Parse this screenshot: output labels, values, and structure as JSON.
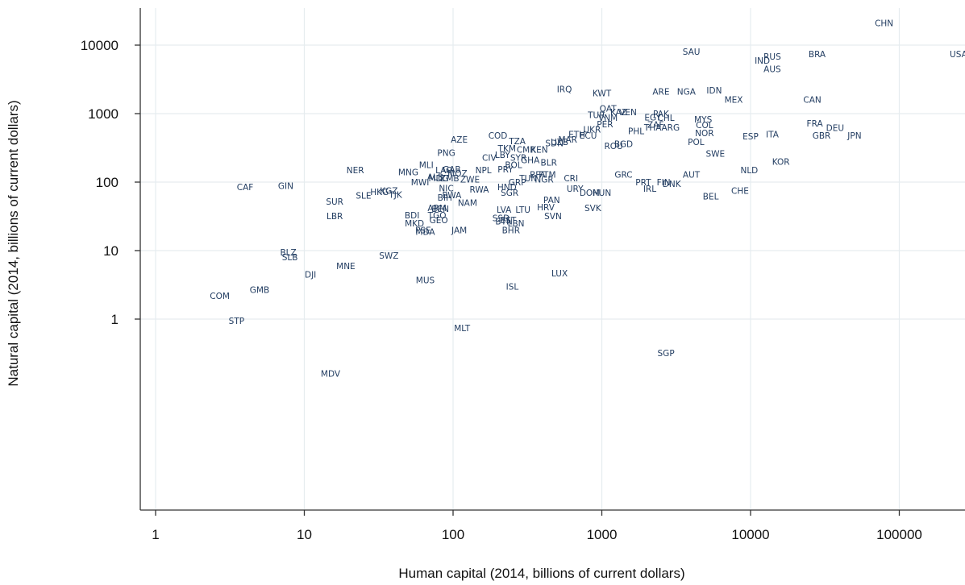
{
  "chart_data": {
    "type": "scatter",
    "title": "",
    "xlabel": "Human capital (2014, billions of current dollars)",
    "ylabel": "Natural capital (2014, billions of current dollars)",
    "x_scale": "log",
    "y_scale": "log",
    "xlim": [
      0.9,
      300000
    ],
    "ylim": [
      0.015,
      40000
    ],
    "x_ticks": [
      1,
      10,
      100,
      1000,
      10000,
      100000
    ],
    "x_tick_labels": [
      "1",
      "10",
      "100",
      "1000",
      "10000",
      "100000"
    ],
    "y_ticks": [
      1,
      10,
      100,
      1000,
      10000
    ],
    "y_tick_labels": [
      "1",
      "10",
      "100",
      "1000",
      "10000"
    ],
    "grid": true,
    "marker": "country code text label",
    "points": [
      {
        "label": "CHN",
        "x": 79000,
        "y": 21000
      },
      {
        "label": "USA",
        "x": 250000,
        "y": 7400
      },
      {
        "label": "SAU",
        "x": 4000,
        "y": 8000
      },
      {
        "label": "BRA",
        "x": 28000,
        "y": 7400
      },
      {
        "label": "RUS",
        "x": 14000,
        "y": 6800
      },
      {
        "label": "IND",
        "x": 12000,
        "y": 6000
      },
      {
        "label": "AUS",
        "x": 14000,
        "y": 4500
      },
      {
        "label": "IRQ",
        "x": 560,
        "y": 2300
      },
      {
        "label": "KWT",
        "x": 1000,
        "y": 2000
      },
      {
        "label": "ARE",
        "x": 2500,
        "y": 2100
      },
      {
        "label": "NGA",
        "x": 3700,
        "y": 2100
      },
      {
        "label": "IDN",
        "x": 5700,
        "y": 2200
      },
      {
        "label": "MEX",
        "x": 7700,
        "y": 1600
      },
      {
        "label": "CAN",
        "x": 26000,
        "y": 1600
      },
      {
        "label": "QAT",
        "x": 1100,
        "y": 1200
      },
      {
        "label": "KAZ",
        "x": 1300,
        "y": 1050
      },
      {
        "label": "VEN",
        "x": 1500,
        "y": 1050
      },
      {
        "label": "TUR",
        "x": 920,
        "y": 960
      },
      {
        "label": "PAK",
        "x": 2500,
        "y": 1000
      },
      {
        "label": "EGY",
        "x": 2200,
        "y": 890
      },
      {
        "label": "CHL",
        "x": 2700,
        "y": 870
      },
      {
        "label": "VNM",
        "x": 1100,
        "y": 870
      },
      {
        "label": "PER",
        "x": 1050,
        "y": 700
      },
      {
        "label": "MYS",
        "x": 4800,
        "y": 830
      },
      {
        "label": "COL",
        "x": 4900,
        "y": 680
      },
      {
        "label": "ZAF",
        "x": 2300,
        "y": 690
      },
      {
        "label": "THA",
        "x": 2200,
        "y": 630
      },
      {
        "label": "ARG",
        "x": 2900,
        "y": 630
      },
      {
        "label": "FRA",
        "x": 27000,
        "y": 720
      },
      {
        "label": "DEU",
        "x": 37000,
        "y": 620
      },
      {
        "label": "PHL",
        "x": 1700,
        "y": 560
      },
      {
        "label": "UKR",
        "x": 860,
        "y": 590
      },
      {
        "label": "NOR",
        "x": 4900,
        "y": 520
      },
      {
        "label": "ESP",
        "x": 10000,
        "y": 470
      },
      {
        "label": "ITA",
        "x": 14000,
        "y": 500
      },
      {
        "label": "GBR",
        "x": 30000,
        "y": 480
      },
      {
        "label": "JPN",
        "x": 50000,
        "y": 480
      },
      {
        "label": "ETH",
        "x": 680,
        "y": 500
      },
      {
        "label": "ECU",
        "x": 810,
        "y": 480
      },
      {
        "label": "AZE",
        "x": 110,
        "y": 420
      },
      {
        "label": "COD",
        "x": 200,
        "y": 480
      },
      {
        "label": "TZA",
        "x": 270,
        "y": 400
      },
      {
        "label": "MAR",
        "x": 590,
        "y": 420
      },
      {
        "label": "UZB",
        "x": 520,
        "y": 390
      },
      {
        "label": "SDN",
        "x": 480,
        "y": 370
      },
      {
        "label": "POL",
        "x": 4300,
        "y": 390
      },
      {
        "label": "ROU",
        "x": 1200,
        "y": 340
      },
      {
        "label": "BGD",
        "x": 1400,
        "y": 360
      },
      {
        "label": "TKM",
        "x": 230,
        "y": 310
      },
      {
        "label": "CMR",
        "x": 310,
        "y": 300
      },
      {
        "label": "KEN",
        "x": 380,
        "y": 300
      },
      {
        "label": "PNG",
        "x": 90,
        "y": 270
      },
      {
        "label": "SWE",
        "x": 5800,
        "y": 260
      },
      {
        "label": "CIV",
        "x": 175,
        "y": 230
      },
      {
        "label": "LBY",
        "x": 215,
        "y": 250
      },
      {
        "label": "SYR",
        "x": 275,
        "y": 230
      },
      {
        "label": "GHA",
        "x": 330,
        "y": 210
      },
      {
        "label": "BOL",
        "x": 255,
        "y": 180
      },
      {
        "label": "BLR",
        "x": 440,
        "y": 195
      },
      {
        "label": "KOR",
        "x": 16000,
        "y": 200
      },
      {
        "label": "NER",
        "x": 22,
        "y": 150
      },
      {
        "label": "MLI",
        "x": 66,
        "y": 180
      },
      {
        "label": "MNG",
        "x": 50,
        "y": 140
      },
      {
        "label": "LAO",
        "x": 87,
        "y": 150
      },
      {
        "label": "GAB",
        "x": 98,
        "y": 155
      },
      {
        "label": "NPL",
        "x": 160,
        "y": 150
      },
      {
        "label": "PRY",
        "x": 225,
        "y": 155
      },
      {
        "label": "MOZ",
        "x": 107,
        "y": 135
      },
      {
        "label": "BFA",
        "x": 370,
        "y": 130
      },
      {
        "label": "FTM",
        "x": 430,
        "y": 130
      },
      {
        "label": "GRC",
        "x": 1400,
        "y": 130
      },
      {
        "label": "AUT",
        "x": 4000,
        "y": 130
      },
      {
        "label": "NLD",
        "x": 9800,
        "y": 150
      },
      {
        "label": "ALB",
        "x": 76,
        "y": 120
      },
      {
        "label": "MDG",
        "x": 80,
        "y": 115
      },
      {
        "label": "ZMB",
        "x": 95,
        "y": 115
      },
      {
        "label": "CRI",
        "x": 620,
        "y": 115
      },
      {
        "label": "TUN",
        "x": 320,
        "y": 115
      },
      {
        "label": "NIC",
        "x": 90,
        "y": 82
      },
      {
        "label": "MWI",
        "x": 60,
        "y": 100
      },
      {
        "label": "ZWE",
        "x": 130,
        "y": 110
      },
      {
        "label": "GRP",
        "x": 270,
        "y": 100
      },
      {
        "label": "NGR",
        "x": 410,
        "y": 110
      },
      {
        "label": "PRT",
        "x": 1900,
        "y": 100
      },
      {
        "label": "FIN",
        "x": 2600,
        "y": 100
      },
      {
        "label": "DNK",
        "x": 2950,
        "y": 95
      },
      {
        "label": "CAF",
        "x": 4,
        "y": 85
      },
      {
        "label": "GIN",
        "x": 7.5,
        "y": 88
      },
      {
        "label": "IRL",
        "x": 2100,
        "y": 80
      },
      {
        "label": "CHE",
        "x": 8500,
        "y": 75
      },
      {
        "label": "RWA",
        "x": 150,
        "y": 78
      },
      {
        "label": "HND",
        "x": 230,
        "y": 85
      },
      {
        "label": "URY",
        "x": 660,
        "y": 80
      },
      {
        "label": "HKG",
        "x": 32,
        "y": 72
      },
      {
        "label": "KGZ",
        "x": 37,
        "y": 75
      },
      {
        "label": "TJK",
        "x": 41,
        "y": 66
      },
      {
        "label": "SLE",
        "x": 25,
        "y": 64
      },
      {
        "label": "BIH",
        "x": 88,
        "y": 60
      },
      {
        "label": "BWA",
        "x": 98,
        "y": 65
      },
      {
        "label": "SGR",
        "x": 240,
        "y": 70
      },
      {
        "label": "DOM",
        "x": 830,
        "y": 70
      },
      {
        "label": "HUN",
        "x": 1000,
        "y": 70
      },
      {
        "label": "BEL",
        "x": 5400,
        "y": 62
      },
      {
        "label": "SUR",
        "x": 16,
        "y": 52
      },
      {
        "label": "NAM",
        "x": 125,
        "y": 50
      },
      {
        "label": "PAN",
        "x": 460,
        "y": 55
      },
      {
        "label": "ARM",
        "x": 78,
        "y": 42
      },
      {
        "label": "BEN",
        "x": 82,
        "y": 41
      },
      {
        "label": "LVA",
        "x": 220,
        "y": 40
      },
      {
        "label": "LTU",
        "x": 295,
        "y": 40
      },
      {
        "label": "HRV",
        "x": 420,
        "y": 43
      },
      {
        "label": "SVK",
        "x": 870,
        "y": 42
      },
      {
        "label": "LBR",
        "x": 16,
        "y": 32
      },
      {
        "label": "BDI",
        "x": 53,
        "y": 33
      },
      {
        "label": "TGO",
        "x": 78,
        "y": 33
      },
      {
        "label": "GEO",
        "x": 80,
        "y": 28
      },
      {
        "label": "SSD",
        "x": 210,
        "y": 30
      },
      {
        "label": "BTN",
        "x": 220,
        "y": 27
      },
      {
        "label": "EST",
        "x": 235,
        "y": 28
      },
      {
        "label": "LBN",
        "x": 265,
        "y": 25
      },
      {
        "label": "SVN",
        "x": 470,
        "y": 32
      },
      {
        "label": "MKD",
        "x": 55,
        "y": 25
      },
      {
        "label": "PSE",
        "x": 63,
        "y": 20
      },
      {
        "label": "MDA",
        "x": 65,
        "y": 19
      },
      {
        "label": "JAM",
        "x": 110,
        "y": 20
      },
      {
        "label": "BHR",
        "x": 245,
        "y": 20
      },
      {
        "label": "BLZ",
        "x": 7.8,
        "y": 9.5
      },
      {
        "label": "SLB",
        "x": 8,
        "y": 8
      },
      {
        "label": "SWZ",
        "x": 37,
        "y": 8.5
      },
      {
        "label": "MNE",
        "x": 19,
        "y": 6
      },
      {
        "label": "DJI",
        "x": 11,
        "y": 4.5
      },
      {
        "label": "LUX",
        "x": 520,
        "y": 4.7
      },
      {
        "label": "MUS",
        "x": 65,
        "y": 3.7
      },
      {
        "label": "ISL",
        "x": 250,
        "y": 3
      },
      {
        "label": "GMB",
        "x": 5,
        "y": 2.7
      },
      {
        "label": "COM",
        "x": 2.7,
        "y": 2.2
      },
      {
        "label": "STP",
        "x": 3.5,
        "y": 0.95
      },
      {
        "label": "MLT",
        "x": 115,
        "y": 0.74
      },
      {
        "label": "SGP",
        "x": 2700,
        "y": 0.32
      },
      {
        "label": "MDV",
        "x": 15,
        "y": 0.16
      }
    ]
  }
}
